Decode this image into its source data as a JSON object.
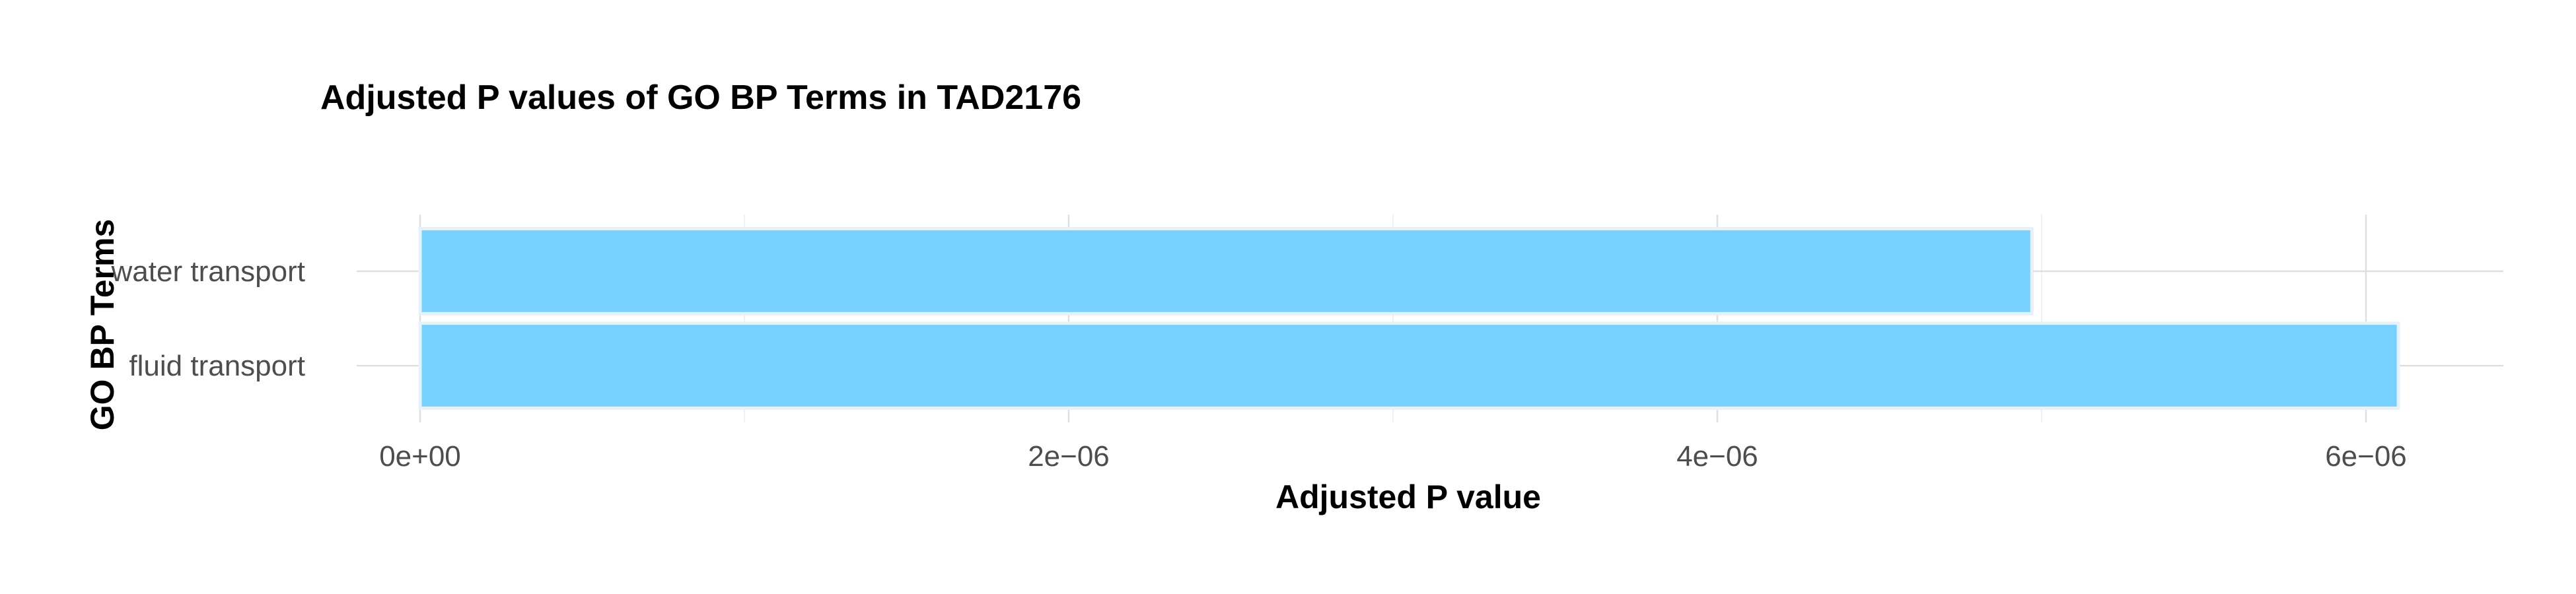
{
  "chart_data": {
    "type": "bar",
    "orientation": "horizontal",
    "title": "Adjusted P values of GO BP Terms in TAD2176",
    "xlabel": "Adjusted P value",
    "ylabel": "GO BP Terms",
    "categories": [
      "fluid transport",
      "water transport"
    ],
    "values": [
      6.1e-06,
      4.97e-06
    ],
    "xlim": [
      0,
      6.4e-06
    ],
    "x_ticks": [
      0,
      2e-06,
      4e-06,
      6e-06
    ],
    "x_tick_labels": [
      "0e+00",
      "2e−06",
      "4e−06",
      "6e−06"
    ],
    "bar_color": "#74CFFC",
    "bar_outline_color": "#E6F2FA",
    "grid": true,
    "legend": "none"
  }
}
